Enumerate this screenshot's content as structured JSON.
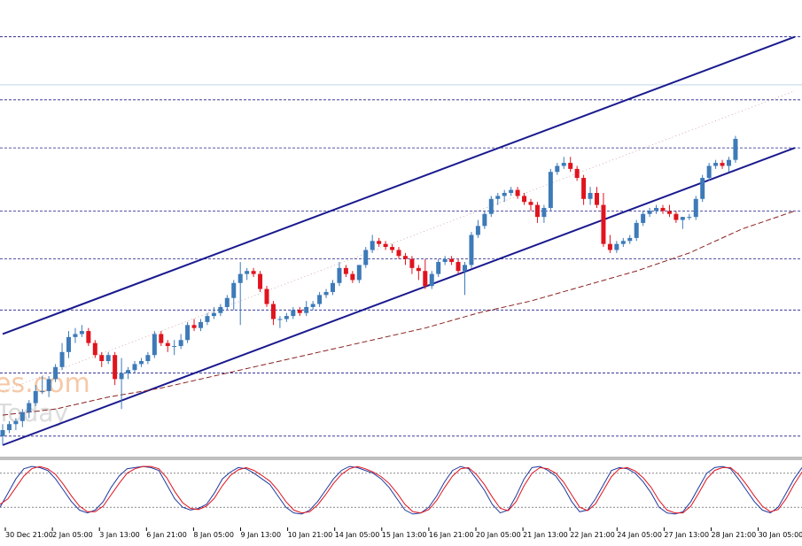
{
  "watermark": {
    "line1": "es.com",
    "line2": "Today"
  },
  "colors": {
    "background": "#ffffff",
    "grid": "#1c1c8a",
    "bull": "#3d7ab8",
    "bear": "#e0141e",
    "channel": "#1a1a8e",
    "ma": "#8a2020",
    "stoch_main": "#1f3a9e",
    "stoch_signal": "#e0141e",
    "watermark": "#f5c9a8",
    "watermark2": "#dcdcdc",
    "axis_text": "#000000"
  },
  "chart_data": [
    {
      "type": "candlestick",
      "panel": "price",
      "x_tick_labels": [
        "30 Dec 21:00",
        "2 Jan 05:00",
        "3 Jan 13:00",
        "6 Jan 21:00",
        "8 Jan 05:00",
        "9 Jan 13:00",
        "10 Jan 21:00",
        "14 Jan 05:00",
        "15 Jan 13:00",
        "16 Jan 21:00",
        "20 Jan 05:00",
        "21 Jan 13:00",
        "22 Jan 21:00",
        "24 Jan 05:00",
        "27 Jan 13:00",
        "28 Jan 21:00",
        "30 Jan 05:00"
      ],
      "ylim": [
        0,
        100
      ],
      "grid": "horizontal dashed",
      "series": [
        {
          "name": "",
          "candles": [
            {
              "o": 3,
              "h": 7,
              "l": 0,
              "c": 5
            },
            {
              "o": 5,
              "h": 8,
              "l": 4,
              "c": 7
            },
            {
              "o": 7,
              "h": 9,
              "l": 5,
              "c": 8
            },
            {
              "o": 8,
              "h": 12,
              "l": 6,
              "c": 11
            },
            {
              "o": 11,
              "h": 15,
              "l": 9,
              "c": 14
            },
            {
              "o": 14,
              "h": 20,
              "l": 13,
              "c": 18
            },
            {
              "o": 18,
              "h": 23,
              "l": 17,
              "c": 18
            },
            {
              "o": 18,
              "h": 23,
              "l": 16,
              "c": 22
            },
            {
              "o": 22,
              "h": 27,
              "l": 21,
              "c": 26
            },
            {
              "o": 26,
              "h": 34,
              "l": 25,
              "c": 31
            },
            {
              "o": 31,
              "h": 38,
              "l": 29,
              "c": 36
            },
            {
              "o": 36,
              "h": 39,
              "l": 34,
              "c": 37
            },
            {
              "o": 37,
              "h": 40,
              "l": 36,
              "c": 38
            },
            {
              "o": 38,
              "h": 39,
              "l": 33,
              "c": 34
            },
            {
              "o": 34,
              "h": 35,
              "l": 29,
              "c": 30
            },
            {
              "o": 30,
              "h": 31,
              "l": 26,
              "c": 28
            },
            {
              "o": 28,
              "h": 31,
              "l": 27,
              "c": 30
            },
            {
              "o": 30,
              "h": 31,
              "l": 20,
              "c": 22
            },
            {
              "o": 22,
              "h": 29,
              "l": 12,
              "c": 24
            },
            {
              "o": 24,
              "h": 26,
              "l": 22,
              "c": 25
            },
            {
              "o": 25,
              "h": 28,
              "l": 24,
              "c": 27
            },
            {
              "o": 27,
              "h": 29,
              "l": 26,
              "c": 28
            },
            {
              "o": 28,
              "h": 31,
              "l": 27,
              "c": 30
            },
            {
              "o": 30,
              "h": 38,
              "l": 29,
              "c": 37
            },
            {
              "o": 37,
              "h": 38,
              "l": 33,
              "c": 34
            },
            {
              "o": 34,
              "h": 35,
              "l": 31,
              "c": 33
            },
            {
              "o": 33,
              "h": 35,
              "l": 30,
              "c": 33
            },
            {
              "o": 33,
              "h": 37,
              "l": 32,
              "c": 35
            },
            {
              "o": 35,
              "h": 41,
              "l": 34,
              "c": 40
            },
            {
              "o": 40,
              "h": 42,
              "l": 38,
              "c": 39
            },
            {
              "o": 39,
              "h": 42,
              "l": 38,
              "c": 41
            },
            {
              "o": 41,
              "h": 44,
              "l": 40,
              "c": 43
            },
            {
              "o": 43,
              "h": 46,
              "l": 42,
              "c": 44
            },
            {
              "o": 44,
              "h": 47,
              "l": 43,
              "c": 46
            },
            {
              "o": 46,
              "h": 50,
              "l": 45,
              "c": 49
            },
            {
              "o": 49,
              "h": 55,
              "l": 45,
              "c": 54
            },
            {
              "o": 54,
              "h": 61,
              "l": 40,
              "c": 57
            },
            {
              "o": 57,
              "h": 59,
              "l": 55,
              "c": 58
            },
            {
              "o": 58,
              "h": 59,
              "l": 56,
              "c": 57
            },
            {
              "o": 57,
              "h": 58,
              "l": 51,
              "c": 52
            },
            {
              "o": 52,
              "h": 53,
              "l": 46,
              "c": 47
            },
            {
              "o": 47,
              "h": 48,
              "l": 40,
              "c": 42
            },
            {
              "o": 42,
              "h": 43,
              "l": 39,
              "c": 42
            },
            {
              "o": 42,
              "h": 44,
              "l": 41,
              "c": 43
            },
            {
              "o": 43,
              "h": 46,
              "l": 42,
              "c": 45
            },
            {
              "o": 45,
              "h": 46,
              "l": 43,
              "c": 44
            },
            {
              "o": 44,
              "h": 48,
              "l": 43,
              "c": 46
            },
            {
              "o": 46,
              "h": 48,
              "l": 45,
              "c": 47
            },
            {
              "o": 47,
              "h": 51,
              "l": 46,
              "c": 50
            },
            {
              "o": 50,
              "h": 52,
              "l": 49,
              "c": 51
            },
            {
              "o": 51,
              "h": 55,
              "l": 50,
              "c": 54
            },
            {
              "o": 54,
              "h": 61,
              "l": 53,
              "c": 59
            },
            {
              "o": 59,
              "h": 60,
              "l": 56,
              "c": 57
            },
            {
              "o": 57,
              "h": 58,
              "l": 54,
              "c": 55
            },
            {
              "o": 55,
              "h": 60,
              "l": 54,
              "c": 60
            },
            {
              "o": 60,
              "h": 66,
              "l": 59,
              "c": 65
            },
            {
              "o": 65,
              "h": 70,
              "l": 64,
              "c": 68
            },
            {
              "o": 68,
              "h": 69,
              "l": 66,
              "c": 67
            },
            {
              "o": 67,
              "h": 68,
              "l": 65,
              "c": 66
            },
            {
              "o": 66,
              "h": 67,
              "l": 64,
              "c": 65
            },
            {
              "o": 65,
              "h": 66,
              "l": 62,
              "c": 63
            },
            {
              "o": 63,
              "h": 64,
              "l": 60,
              "c": 62
            },
            {
              "o": 62,
              "h": 63,
              "l": 57,
              "c": 59
            },
            {
              "o": 59,
              "h": 60,
              "l": 55,
              "c": 58
            },
            {
              "o": 58,
              "h": 62,
              "l": 52,
              "c": 53
            },
            {
              "o": 53,
              "h": 58,
              "l": 52,
              "c": 57
            },
            {
              "o": 57,
              "h": 62,
              "l": 56,
              "c": 61
            },
            {
              "o": 61,
              "h": 63,
              "l": 60,
              "c": 62
            },
            {
              "o": 62,
              "h": 63,
              "l": 60,
              "c": 61
            },
            {
              "o": 61,
              "h": 62,
              "l": 57,
              "c": 58
            },
            {
              "o": 58,
              "h": 61,
              "l": 50,
              "c": 60
            },
            {
              "o": 60,
              "h": 71,
              "l": 59,
              "c": 70
            },
            {
              "o": 70,
              "h": 75,
              "l": 69,
              "c": 73
            },
            {
              "o": 73,
              "h": 78,
              "l": 72,
              "c": 77
            },
            {
              "o": 77,
              "h": 83,
              "l": 76,
              "c": 82
            },
            {
              "o": 82,
              "h": 84,
              "l": 80,
              "c": 83
            },
            {
              "o": 83,
              "h": 85,
              "l": 81,
              "c": 84
            },
            {
              "o": 84,
              "h": 86,
              "l": 83,
              "c": 85
            },
            {
              "o": 85,
              "h": 86,
              "l": 82,
              "c": 83
            },
            {
              "o": 83,
              "h": 84,
              "l": 80,
              "c": 81
            },
            {
              "o": 81,
              "h": 82,
              "l": 78,
              "c": 80
            },
            {
              "o": 80,
              "h": 81,
              "l": 74,
              "c": 76
            },
            {
              "o": 76,
              "h": 80,
              "l": 74,
              "c": 79
            },
            {
              "o": 79,
              "h": 92,
              "l": 78,
              "c": 91
            },
            {
              "o": 91,
              "h": 94,
              "l": 90,
              "c": 93
            },
            {
              "o": 93,
              "h": 96,
              "l": 92,
              "c": 94
            },
            {
              "o": 94,
              "h": 96,
              "l": 91,
              "c": 92
            },
            {
              "o": 92,
              "h": 93,
              "l": 88,
              "c": 89
            },
            {
              "o": 89,
              "h": 90,
              "l": 80,
              "c": 82
            },
            {
              "o": 82,
              "h": 86,
              "l": 80,
              "c": 84
            },
            {
              "o": 84,
              "h": 86,
              "l": 79,
              "c": 80
            },
            {
              "o": 80,
              "h": 84,
              "l": 66,
              "c": 67
            },
            {
              "o": 67,
              "h": 70,
              "l": 64,
              "c": 65
            },
            {
              "o": 65,
              "h": 68,
              "l": 64,
              "c": 67
            },
            {
              "o": 67,
              "h": 69,
              "l": 66,
              "c": 68
            },
            {
              "o": 68,
              "h": 70,
              "l": 67,
              "c": 69
            },
            {
              "o": 69,
              "h": 75,
              "l": 68,
              "c": 74
            },
            {
              "o": 74,
              "h": 78,
              "l": 73,
              "c": 77
            },
            {
              "o": 77,
              "h": 79,
              "l": 76,
              "c": 78
            },
            {
              "o": 78,
              "h": 80,
              "l": 77,
              "c": 79
            },
            {
              "o": 79,
              "h": 80,
              "l": 77,
              "c": 78
            },
            {
              "o": 78,
              "h": 80,
              "l": 76,
              "c": 77
            },
            {
              "o": 77,
              "h": 78,
              "l": 74,
              "c": 75
            },
            {
              "o": 75,
              "h": 76,
              "l": 72,
              "c": 76
            },
            {
              "o": 76,
              "h": 77,
              "l": 75,
              "c": 76
            },
            {
              "o": 76,
              "h": 83,
              "l": 75,
              "c": 82
            },
            {
              "o": 82,
              "h": 90,
              "l": 81,
              "c": 89
            },
            {
              "o": 89,
              "h": 94,
              "l": 88,
              "c": 93
            },
            {
              "o": 93,
              "h": 95,
              "l": 92,
              "c": 94
            },
            {
              "o": 94,
              "h": 95,
              "l": 92,
              "c": 93
            },
            {
              "o": 93,
              "h": 96,
              "l": 91,
              "c": 95
            },
            {
              "o": 95,
              "h": 103,
              "l": 94,
              "c": 102
            }
          ]
        }
      ],
      "moving_average": [
        [
          0,
          10
        ],
        [
          8,
          12
        ],
        [
          16,
          16
        ],
        [
          24,
          19
        ],
        [
          32,
          23
        ],
        [
          40,
          27
        ],
        [
          48,
          31
        ],
        [
          56,
          35
        ],
        [
          64,
          39
        ],
        [
          72,
          44
        ],
        [
          80,
          48
        ],
        [
          88,
          53
        ],
        [
          96,
          58
        ],
        [
          104,
          64
        ],
        [
          112,
          72
        ],
        [
          120,
          78
        ]
      ],
      "channel": {
        "upper": [
          [
            0,
            37
          ],
          [
            120,
            136
          ]
        ],
        "lower": [
          [
            0,
            0
          ],
          [
            120,
            99
          ]
        ],
        "mid_dotted": [
          [
            0,
            18
          ],
          [
            120,
            118
          ]
        ]
      },
      "horizontal_levels": [
        136,
        115,
        99,
        78,
        62,
        45,
        24,
        3
      ],
      "highlight_level": 120
    },
    {
      "type": "line",
      "panel": "stochastic",
      "ylim": [
        0,
        100
      ],
      "levels": [
        80,
        20
      ],
      "series": [
        {
          "name": "",
          "values": [
            20,
            45,
            70,
            88,
            92,
            90,
            85,
            70,
            50,
            30,
            15,
            10,
            15,
            30,
            55,
            75,
            88,
            90,
            92,
            90,
            85,
            60,
            35,
            20,
            15,
            18,
            25,
            45,
            70,
            82,
            90,
            88,
            80,
            70,
            60,
            40,
            20,
            10,
            8,
            15,
            30,
            50,
            70,
            85,
            92,
            90,
            85,
            80,
            70,
            55,
            35,
            15,
            8,
            10,
            20,
            40,
            65,
            85,
            92,
            88,
            70,
            50,
            25,
            10,
            15,
            40,
            70,
            90,
            92,
            85,
            75,
            55,
            30,
            12,
            15,
            35,
            60,
            85,
            90,
            88,
            80,
            65,
            45,
            20,
            10,
            8,
            12,
            30,
            55,
            80,
            90,
            92,
            88,
            70,
            50,
            30,
            15,
            10,
            20,
            45,
            70,
            90
          ]
        },
        {
          "name": "",
          "values": [
            25,
            35,
            55,
            75,
            88,
            92,
            88,
            78,
            60,
            40,
            22,
            12,
            12,
            22,
            42,
            62,
            80,
            88,
            92,
            92,
            88,
            72,
            48,
            28,
            18,
            16,
            22,
            36,
            58,
            76,
            86,
            90,
            85,
            76,
            66,
            50,
            30,
            15,
            10,
            12,
            24,
            42,
            62,
            78,
            88,
            92,
            88,
            82,
            74,
            62,
            45,
            25,
            12,
            10,
            16,
            32,
            55,
            75,
            88,
            90,
            78,
            60,
            38,
            18,
            14,
            30,
            58,
            80,
            90,
            88,
            80,
            64,
            42,
            20,
            14,
            26,
            50,
            74,
            88,
            90,
            84,
            72,
            55,
            32,
            15,
            10,
            10,
            22,
            45,
            70,
            85,
            90,
            90,
            78,
            60,
            40,
            22,
            12,
            16,
            35,
            60,
            82
          ]
        }
      ]
    }
  ]
}
